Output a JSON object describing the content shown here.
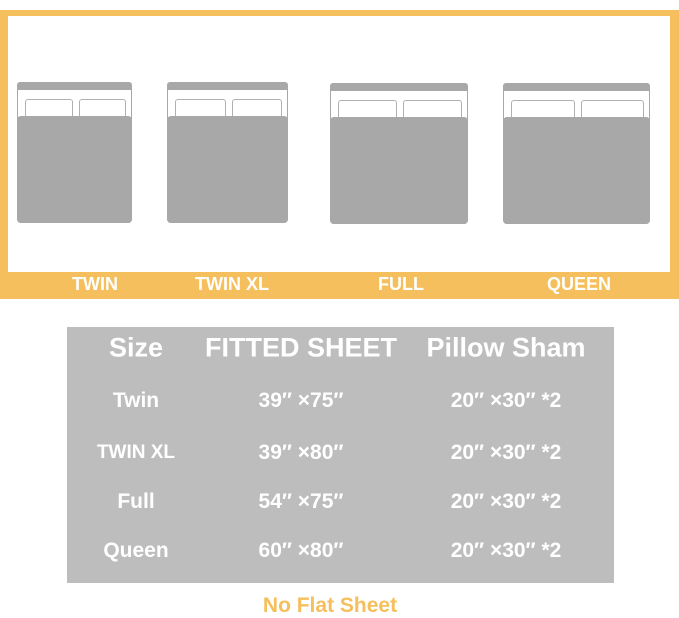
{
  "beds": [
    {
      "label": "TWIN"
    },
    {
      "label": "TWIN XL"
    },
    {
      "label": "FULL"
    },
    {
      "label": "QUEEN"
    }
  ],
  "table": {
    "headers": [
      "Size",
      "FITTED SHEET",
      "Pillow Sham"
    ],
    "rows": [
      [
        "Twin",
        "39″ ×75″",
        "20″ ×30″ *2"
      ],
      [
        "TWIN XL",
        "39″ ×80″",
        "20″ ×30″ *2"
      ],
      [
        "Full",
        "54″ ×75″",
        "20″ ×30″ *2"
      ],
      [
        "Queen",
        "60″ ×80″",
        "20″ ×30″ *2"
      ]
    ]
  },
  "note": "No Flat Sheet",
  "colors": {
    "accent": "#f5bf5d",
    "bed_gray": "#a8a8a8",
    "table_gray": "#bdbdbd"
  }
}
